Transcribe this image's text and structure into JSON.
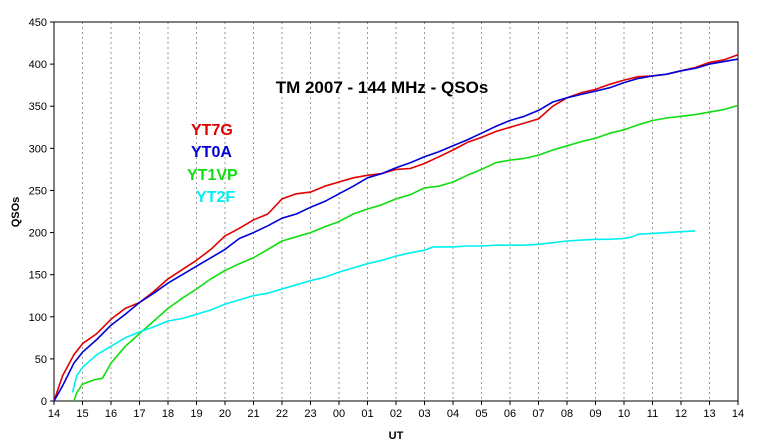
{
  "chart_data": {
    "type": "line",
    "title": "TM 2007 - 144 MHz - QSOs",
    "xlabel": "UT",
    "ylabel": "QSOs",
    "ylim": [
      0,
      450
    ],
    "yticks": [
      0,
      50,
      100,
      150,
      200,
      250,
      300,
      350,
      400,
      450
    ],
    "xticks": [
      "14",
      "15",
      "16",
      "17",
      "18",
      "19",
      "20",
      "21",
      "22",
      "23",
      "00",
      "01",
      "02",
      "03",
      "04",
      "05",
      "06",
      "07",
      "08",
      "09",
      "10",
      "11",
      "12",
      "13",
      "14"
    ],
    "grid": "vertical-dashed",
    "legend_position": "upper-left",
    "series": [
      {
        "name": "YT7G",
        "color": "#e00000",
        "x": [
          14,
          14.3,
          14.7,
          15.0,
          15.5,
          16.0,
          16.5,
          17.0,
          17.5,
          18.0,
          18.5,
          19.0,
          19.5,
          20.0,
          20.5,
          21.0,
          21.5,
          22.0,
          22.5,
          23.0,
          23.5,
          24.0,
          24.5,
          25.0,
          25.5,
          26.0,
          26.5,
          27.0,
          27.5,
          28.0,
          28.5,
          29.0,
          29.5,
          30.0,
          30.5,
          31.0,
          31.5,
          32.0,
          32.5,
          33.0,
          33.5,
          34.0,
          34.5,
          35.0,
          35.5,
          36.0,
          36.5,
          37.0,
          37.5,
          38.0
        ],
        "values": [
          0,
          30,
          55,
          68,
          80,
          97,
          110,
          117,
          130,
          145,
          156,
          167,
          180,
          196,
          205,
          215,
          222,
          240,
          246,
          248,
          255,
          260,
          265,
          268,
          270,
          275,
          276,
          282,
          290,
          298,
          307,
          313,
          320,
          325,
          330,
          335,
          350,
          360,
          366,
          370,
          376,
          381,
          385,
          386,
          388,
          392,
          396,
          402,
          405,
          411
        ]
      },
      {
        "name": "YT0A",
        "color": "#0000d8",
        "x": [
          14,
          14.3,
          14.7,
          15.0,
          15.5,
          16.0,
          16.5,
          17.0,
          17.5,
          18.0,
          18.5,
          19.0,
          19.5,
          20.0,
          20.5,
          21.0,
          21.5,
          22.0,
          22.5,
          23.0,
          23.5,
          24.0,
          24.5,
          25.0,
          25.5,
          26.0,
          26.5,
          27.0,
          27.5,
          28.0,
          28.5,
          29.0,
          29.5,
          30.0,
          30.5,
          31.0,
          31.5,
          32.0,
          32.5,
          33.0,
          33.5,
          34.0,
          34.5,
          35.0,
          35.5,
          36.0,
          36.5,
          37.0,
          37.5,
          38.0
        ],
        "values": [
          0,
          18,
          45,
          58,
          73,
          90,
          103,
          117,
          128,
          140,
          150,
          160,
          170,
          180,
          193,
          200,
          208,
          217,
          222,
          230,
          237,
          246,
          255,
          265,
          270,
          277,
          283,
          290,
          296,
          303,
          310,
          318,
          326,
          333,
          338,
          345,
          355,
          360,
          364,
          368,
          372,
          378,
          383,
          386,
          388,
          392,
          395,
          400,
          403,
          406
        ]
      },
      {
        "name": "YT1VP",
        "color": "#10dd10",
        "x": [
          14.7,
          14.8,
          15.0,
          15.4,
          15.7,
          16.0,
          16.5,
          17.0,
          17.5,
          18.0,
          18.5,
          19.0,
          19.5,
          20.0,
          20.5,
          21.0,
          21.5,
          22.0,
          22.5,
          23.0,
          23.5,
          24.0,
          24.5,
          25.0,
          25.5,
          26.0,
          26.5,
          27.0,
          27.5,
          28.0,
          28.5,
          29.0,
          29.5,
          30.0,
          30.5,
          31.0,
          31.5,
          32.0,
          32.5,
          33.0,
          33.5,
          34.0,
          34.5,
          35.0,
          35.5,
          36.0,
          36.5,
          37.0,
          37.5,
          38.0
        ],
        "values": [
          0,
          10,
          20,
          25,
          27,
          45,
          65,
          80,
          95,
          110,
          122,
          133,
          145,
          155,
          163,
          170,
          180,
          190,
          195,
          200,
          207,
          213,
          222,
          228,
          233,
          240,
          245,
          253,
          255,
          260,
          268,
          275,
          283,
          286,
          288,
          292,
          298,
          303,
          308,
          312,
          318,
          322,
          328,
          333,
          336,
          338,
          340,
          343,
          346,
          351
        ]
      },
      {
        "name": "YT2F",
        "color": "#00f0f0",
        "x": [
          14.65,
          14.8,
          15.0,
          15.5,
          16.0,
          16.5,
          17.0,
          17.5,
          18.0,
          18.5,
          19.0,
          19.5,
          20.0,
          20.5,
          21.0,
          21.5,
          22.0,
          22.5,
          23.0,
          23.5,
          24.0,
          24.5,
          25.0,
          25.5,
          26.0,
          26.5,
          27.0,
          27.3,
          27.5,
          28.0,
          28.5,
          29.0,
          29.5,
          30.0,
          30.5,
          31.0,
          31.5,
          32.0,
          32.5,
          33.0,
          33.5,
          34.0,
          34.3,
          34.5,
          35.0,
          35.5,
          36.0,
          36.5
        ],
        "values": [
          10,
          30,
          40,
          55,
          65,
          75,
          82,
          88,
          95,
          98,
          103,
          108,
          115,
          120,
          125,
          128,
          133,
          138,
          143,
          147,
          153,
          158,
          163,
          167,
          172,
          176,
          179,
          183,
          183,
          183,
          184,
          184,
          185,
          185,
          185,
          186,
          188,
          190,
          191,
          192,
          192,
          193,
          195,
          198,
          199,
          200,
          201,
          202
        ]
      }
    ]
  }
}
